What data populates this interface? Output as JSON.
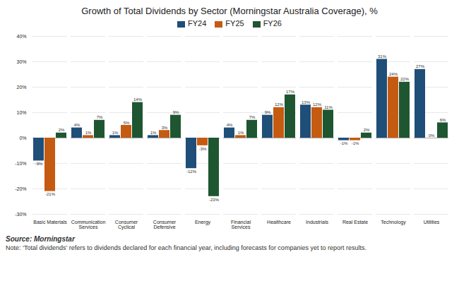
{
  "chart_data": {
    "type": "bar",
    "title": "Growth of Total Dividends by Sector (Morningstar Australia Coverage), %",
    "categories": [
      "Basic Materials",
      "Communication\nServices",
      "Consumer\nCyclical",
      "Consumer\nDefensive",
      "Energy",
      "Financial\nServices",
      "Healthcare",
      "Industrials",
      "Real Estate",
      "Technology",
      "Utilities"
    ],
    "series": [
      {
        "name": "FY24",
        "color": "#1f4e79",
        "values": [
          -9,
          4,
          1,
          1,
          -12,
          4,
          9,
          13,
          -1,
          31,
          27
        ],
        "value_labels": [
          "-9%",
          "4%",
          "1%",
          "1%",
          "-12%",
          "4%",
          "9%",
          "13%",
          "-1%",
          "31%",
          "27%"
        ]
      },
      {
        "name": "FY25",
        "color": "#c55a11",
        "values": [
          -21,
          1,
          5,
          3,
          -3,
          1,
          12,
          12,
          -1,
          24,
          0
        ],
        "value_labels": [
          "-21%",
          "1%",
          "5%",
          "3%",
          "-3%",
          "1%",
          "12%",
          "12%",
          "-1%",
          "24%",
          "0%"
        ]
      },
      {
        "name": "FY26",
        "color": "#1e5631",
        "values": [
          2,
          7,
          14,
          9,
          -23,
          7,
          17,
          11,
          2,
          22,
          6
        ],
        "value_labels": [
          "2%",
          "7%",
          "14%",
          "9%",
          "-23%",
          "7%",
          "17%",
          "11%",
          "2%",
          "22%",
          "6%"
        ]
      }
    ],
    "ylim": [
      -30,
      40
    ],
    "yticks": [
      {
        "value": -30,
        "label": "-30%"
      },
      {
        "value": -20,
        "label": "-20%"
      },
      {
        "value": -10,
        "label": "-10%"
      },
      {
        "value": 0,
        "label": "0%"
      },
      {
        "value": 10,
        "label": "10%"
      },
      {
        "value": 20,
        "label": "20%"
      },
      {
        "value": 30,
        "label": "30%"
      },
      {
        "value": 40,
        "label": "40%"
      }
    ],
    "grid": true,
    "legend": "top",
    "data_labels": true,
    "annotations": [
      "Source: Morningstar",
      "Note: ‘Total dividends’ refers to dividends declared for each financial year, including forecasts for companies yet to report results."
    ]
  }
}
